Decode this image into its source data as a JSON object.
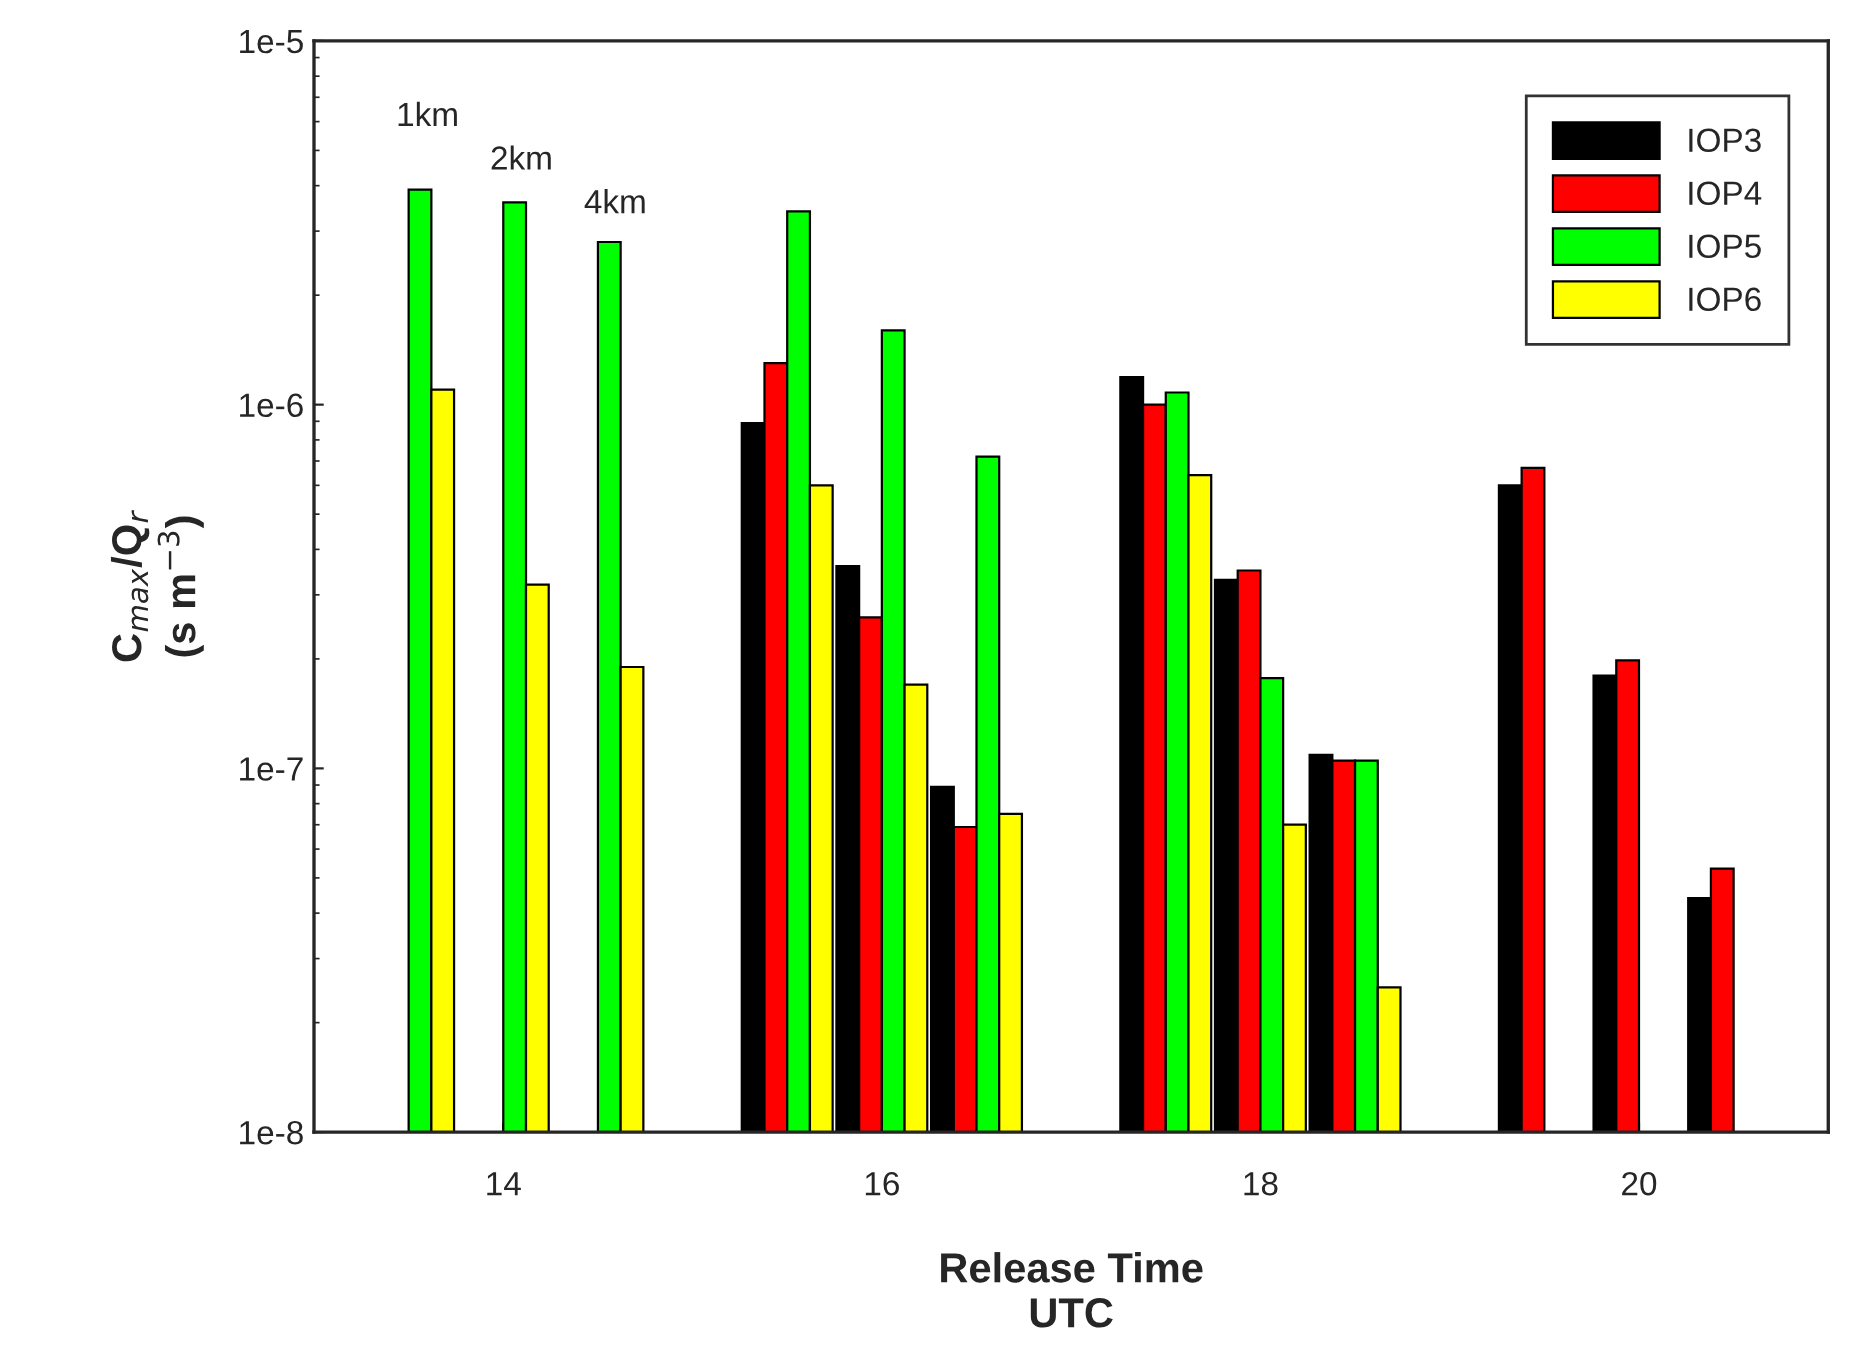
{
  "chart_data": {
    "type": "bar",
    "xlabel": "Release Time\nUTC",
    "ylabel": "C$_{max}$/Q$_{r}$\n(s m$^{−3}$)",
    "series": [
      {
        "name": "IOP3",
        "color": "#000000",
        "x": [
          15.5,
          16,
          16.5,
          17.5,
          18,
          18.5,
          19.5,
          20,
          20.5
        ],
        "values": [
          8.9e-07,
          3.6e-07,
          8.9e-08,
          1.19e-06,
          3.3e-07,
          1.09e-07,
          6e-07,
          1.8e-07,
          4.4e-08
        ]
      },
      {
        "name": "IOP4",
        "color": "#ff0000",
        "x": [
          15.5,
          16,
          16.5,
          17.5,
          18,
          18.5,
          19.5,
          20,
          20.5
        ],
        "values": [
          1.3e-06,
          2.6e-07,
          6.9e-08,
          1e-06,
          3.5e-07,
          1.05e-07,
          6.7e-07,
          1.98e-07,
          5.3e-08
        ]
      },
      {
        "name": "IOP5",
        "color": "#00ff00",
        "x": [
          13.5,
          14,
          14.5,
          15.5,
          16,
          16.5,
          17.5,
          18,
          18.5
        ],
        "values": [
          3.9e-06,
          3.6e-06,
          2.8e-06,
          3.4e-06,
          1.6e-06,
          7.2e-07,
          1.08e-06,
          1.77e-07,
          1.05e-07
        ]
      },
      {
        "name": "IOP6",
        "color": "#ffff00",
        "x": [
          13.5,
          14,
          14.5,
          15.5,
          16,
          16.5,
          17.5,
          18,
          18.5
        ],
        "values": [
          1.1e-06,
          3.2e-07,
          1.9e-07,
          6e-07,
          1.7e-07,
          7.5e-08,
          6.4e-07,
          7e-08,
          2.5e-08
        ]
      }
    ],
    "xlim": [
      13,
      21
    ],
    "xticks": [
      14,
      16,
      18,
      20
    ],
    "ylim": [
      1e-08,
      1e-05
    ],
    "yticks": [
      {
        "value": 1e-08,
        "label": "1e-8"
      },
      {
        "value": 1e-07,
        "label": "1e-7"
      },
      {
        "value": 1e-06,
        "label": "1e-6"
      },
      {
        "value": 1e-05,
        "label": "1e-5"
      }
    ],
    "log": "y",
    "grid": false,
    "legend": "top right",
    "annotations": [
      "1km",
      "2km",
      "4km"
    ]
  }
}
